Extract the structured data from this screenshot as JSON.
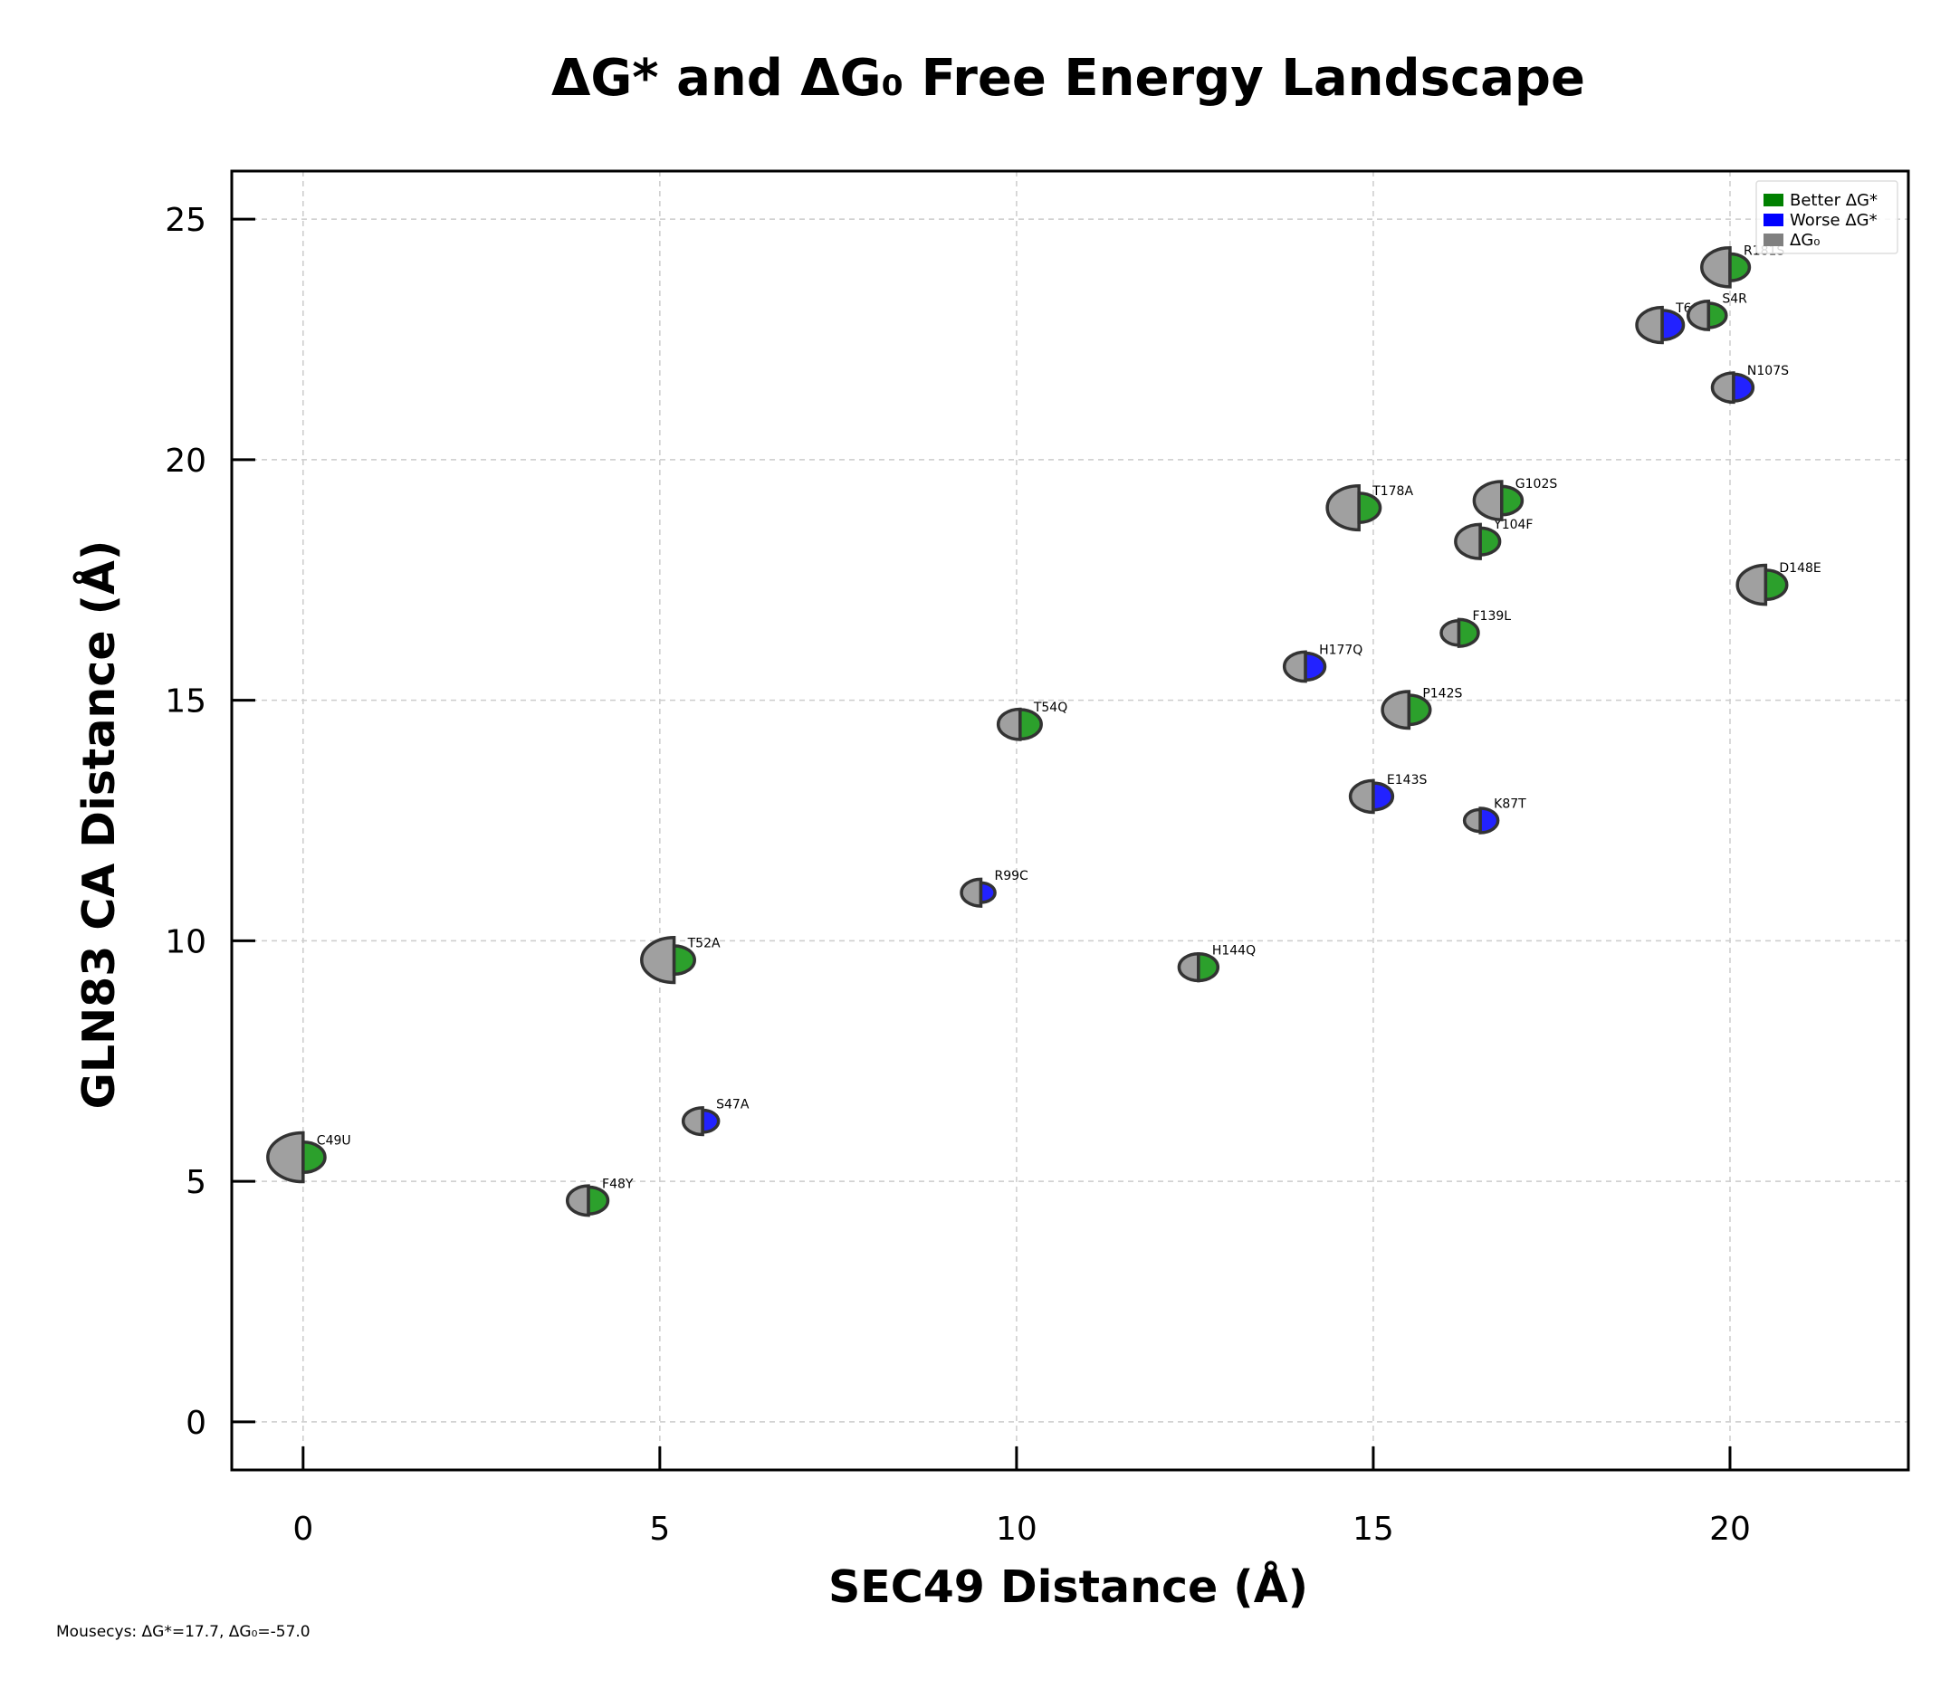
{
  "chart_data": {
    "type": "scatter",
    "title": "ΔG* and ΔG₀ Free Energy Landscape",
    "xlabel": "SEC49 Distance (Å)",
    "ylabel": "GLN83 CA Distance (Å)",
    "xlim": [
      -1,
      22.5
    ],
    "ylim": [
      -1,
      26
    ],
    "xticks": [
      0,
      5,
      10,
      15,
      20
    ],
    "yticks": [
      0,
      5,
      10,
      15,
      20,
      25
    ],
    "grid": true,
    "legend_position": "top-right",
    "legend": [
      {
        "label": "Better ΔG*",
        "color": "#008000"
      },
      {
        "label": "Worse ΔG*",
        "color": "#0000ff"
      },
      {
        "label": "ΔG₀",
        "color": "#808080"
      }
    ],
    "colors": {
      "better": "#2ca02c",
      "worse": "#2222ff",
      "g0": "#a0a0a0",
      "edge": "#333333"
    },
    "points": [
      {
        "label": "C49U",
        "x": 0.0,
        "y": 5.5,
        "status": "better",
        "g0_size": 1.0,
        "dg_size": 0.62
      },
      {
        "label": "F48Y",
        "x": 4.0,
        "y": 4.6,
        "status": "better",
        "g0_size": 0.6,
        "dg_size": 0.55
      },
      {
        "label": "S47A",
        "x": 5.6,
        "y": 6.25,
        "status": "worse",
        "g0_size": 0.55,
        "dg_size": 0.45
      },
      {
        "label": "T52A",
        "x": 5.2,
        "y": 9.6,
        "status": "better",
        "g0_size": 0.92,
        "dg_size": 0.58
      },
      {
        "label": "R99C",
        "x": 9.5,
        "y": 11.0,
        "status": "worse",
        "g0_size": 0.55,
        "dg_size": 0.4
      },
      {
        "label": "T54Q",
        "x": 10.05,
        "y": 14.5,
        "status": "better",
        "g0_size": 0.62,
        "dg_size": 0.6
      },
      {
        "label": "H144Q",
        "x": 12.55,
        "y": 9.45,
        "status": "better",
        "g0_size": 0.55,
        "dg_size": 0.55
      },
      {
        "label": "H177Q",
        "x": 14.05,
        "y": 15.7,
        "status": "worse",
        "g0_size": 0.6,
        "dg_size": 0.55
      },
      {
        "label": "T178A",
        "x": 14.8,
        "y": 19.0,
        "status": "better",
        "g0_size": 0.9,
        "dg_size": 0.6
      },
      {
        "label": "E143S",
        "x": 15.0,
        "y": 13.0,
        "status": "worse",
        "g0_size": 0.65,
        "dg_size": 0.55
      },
      {
        "label": "P142S",
        "x": 15.5,
        "y": 14.8,
        "status": "better",
        "g0_size": 0.75,
        "dg_size": 0.6
      },
      {
        "label": "F139L",
        "x": 16.2,
        "y": 16.4,
        "status": "better",
        "g0_size": 0.5,
        "dg_size": 0.55
      },
      {
        "label": "Y104F",
        "x": 16.5,
        "y": 18.3,
        "status": "better",
        "g0_size": 0.7,
        "dg_size": 0.55
      },
      {
        "label": "K87T",
        "x": 16.5,
        "y": 12.5,
        "status": "worse",
        "g0_size": 0.45,
        "dg_size": 0.5
      },
      {
        "label": "G102S",
        "x": 16.8,
        "y": 19.15,
        "status": "better",
        "g0_size": 0.78,
        "dg_size": 0.58
      },
      {
        "label": "T60A",
        "x": 19.05,
        "y": 22.8,
        "status": "worse",
        "g0_size": 0.72,
        "dg_size": 0.6
      },
      {
        "label": "S4R",
        "x": 19.7,
        "y": 23.0,
        "status": "better",
        "g0_size": 0.58,
        "dg_size": 0.5
      },
      {
        "label": "N107S",
        "x": 20.05,
        "y": 21.5,
        "status": "worse",
        "g0_size": 0.6,
        "dg_size": 0.55
      },
      {
        "label": "R181S",
        "x": 20.0,
        "y": 24.0,
        "status": "better",
        "g0_size": 0.8,
        "dg_size": 0.55
      },
      {
        "label": "D148E",
        "x": 20.5,
        "y": 17.4,
        "status": "better",
        "g0_size": 0.8,
        "dg_size": 0.6
      }
    ]
  },
  "footnote": "Mousecys: ΔG*=17.7, ΔG₀=-57.0"
}
